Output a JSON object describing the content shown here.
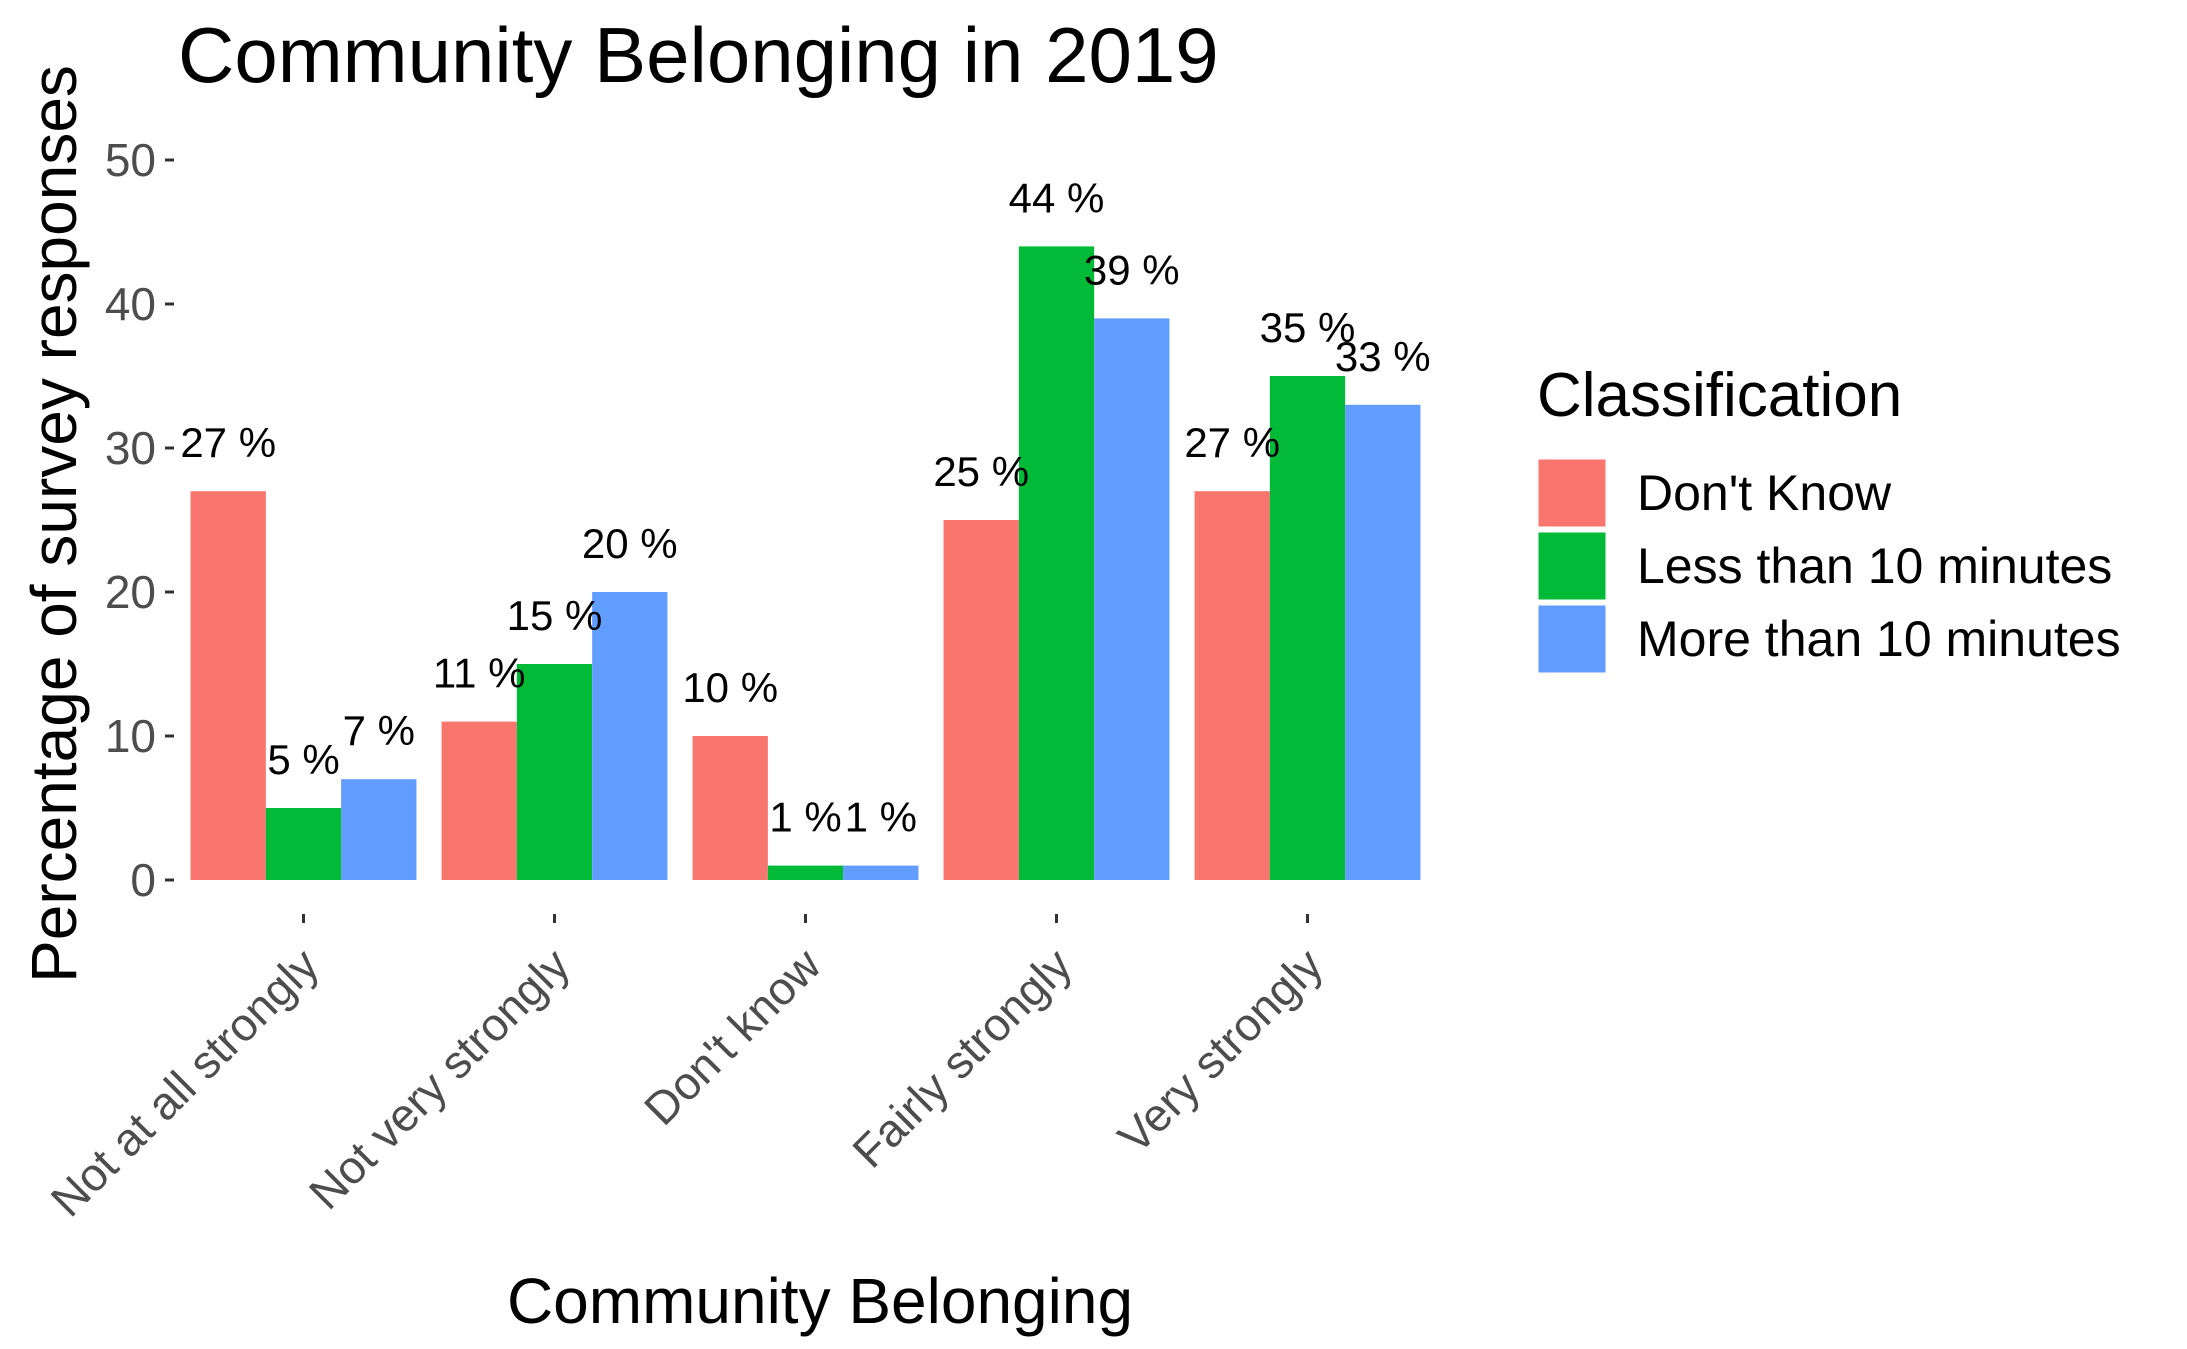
{
  "chart_data": {
    "type": "bar",
    "title": "Community Belonging in 2019",
    "xlabel": "Community Belonging",
    "ylabel": "Percentage of survey responses",
    "categories": [
      "Not at all strongly",
      "Not very strongly",
      "Don't know",
      "Fairly strongly",
      "Very strongly"
    ],
    "series": [
      {
        "name": "Don't Know",
        "color": "#F8766D",
        "values": [
          27,
          11,
          10,
          25,
          27
        ],
        "labels": [
          "27 %",
          "11 %",
          "10 %",
          "25 %",
          "27 %"
        ]
      },
      {
        "name": "Less than 10 minutes",
        "color": "#00BA38",
        "values": [
          5,
          15,
          1,
          44,
          35
        ],
        "labels": [
          "5 %",
          "15 %",
          "1 %",
          "44 %",
          "35 %"
        ]
      },
      {
        "name": "More than 10 minutes",
        "color": "#619CFF",
        "values": [
          7,
          20,
          1,
          39,
          33
        ],
        "labels": [
          "7 %",
          "20 %",
          "1 %",
          "39 %",
          "33 %"
        ]
      }
    ],
    "ylim": [
      0,
      50
    ],
    "yticks": [
      0,
      10,
      20,
      30,
      40,
      50
    ],
    "grid": false,
    "legend": {
      "title": "Classification",
      "position": "right"
    }
  }
}
